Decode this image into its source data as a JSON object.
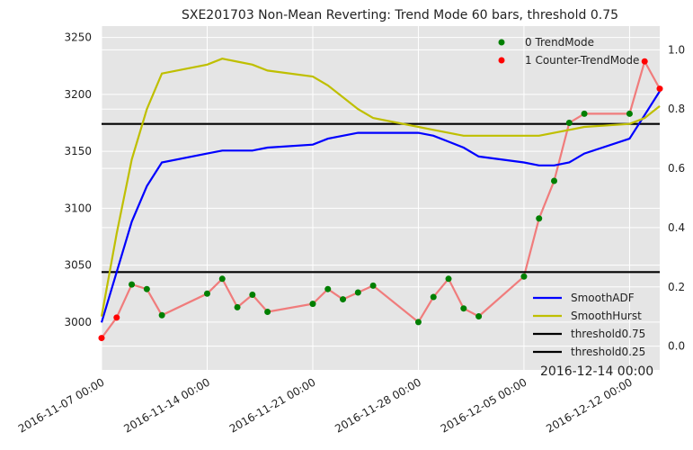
{
  "chart_data": {
    "type": "line",
    "title": "SXE201703 Non-Mean Reverting: Trend Mode 60 bars, threshold 0.75",
    "corner_label": "2016-12-14 00:00",
    "x_dates": [
      "2016-11-07",
      "2016-11-08",
      "2016-11-09",
      "2016-11-10",
      "2016-11-11",
      "2016-11-14",
      "2016-11-15",
      "2016-11-16",
      "2016-11-17",
      "2016-11-18",
      "2016-11-21",
      "2016-11-22",
      "2016-11-23",
      "2016-11-24",
      "2016-11-25",
      "2016-11-28",
      "2016-11-29",
      "2016-11-30",
      "2016-12-01",
      "2016-12-02",
      "2016-12-05",
      "2016-12-06",
      "2016-12-07",
      "2016-12-08",
      "2016-12-09",
      "2016-12-12",
      "2016-12-13",
      "2016-12-14"
    ],
    "x_tick_labels": [
      "2016-11-07 00:00",
      "2016-11-14 00:00",
      "2016-11-21 00:00",
      "2016-11-28 00:00",
      "2016-12-05 00:00",
      "2016-12-12 00:00"
    ],
    "y_left": {
      "range": [
        2958,
        3260
      ],
      "ticks": [
        3000,
        3050,
        3100,
        3150,
        3200,
        3250
      ]
    },
    "y_right": {
      "range": [
        -0.08,
        1.08
      ],
      "ticks": [
        0.0,
        0.2,
        0.4,
        0.6,
        0.8,
        1.0
      ],
      "tick_labels": [
        "0.0",
        "0.2",
        "0.4",
        "0.6",
        "0.8",
        "1.0"
      ]
    },
    "price": {
      "color": "#f07c7c",
      "values": [
        2986,
        3004,
        3033,
        3029,
        3006,
        3025,
        3038,
        3013,
        3024,
        3009,
        3016,
        3029,
        3020,
        3026,
        3032,
        3000,
        3022,
        3038,
        3012,
        3005,
        3040,
        3091,
        3124,
        3175,
        3183,
        3183,
        3229,
        3205
      ]
    },
    "trend_mode": [
      1,
      1,
      0,
      0,
      0,
      0,
      0,
      0,
      0,
      0,
      0,
      0,
      0,
      0,
      0,
      0,
      0,
      0,
      0,
      0,
      0,
      0,
      0,
      0,
      0,
      0,
      1,
      1
    ],
    "series": [
      {
        "name": "SmoothADF",
        "color": "#0000ff",
        "values": [
          0.08,
          0.25,
          0.42,
          0.54,
          0.62,
          0.65,
          0.66,
          0.66,
          0.66,
          0.67,
          0.68,
          0.7,
          0.71,
          0.72,
          0.72,
          0.72,
          0.71,
          0.69,
          0.67,
          0.64,
          0.62,
          0.61,
          0.61,
          0.62,
          0.65,
          0.7,
          0.78,
          0.86
        ]
      },
      {
        "name": "SmoothHurst",
        "color": "#bfbf00",
        "values": [
          0.1,
          0.38,
          0.63,
          0.8,
          0.92,
          0.95,
          0.97,
          0.96,
          0.95,
          0.93,
          0.91,
          0.88,
          0.84,
          0.8,
          0.77,
          0.74,
          0.73,
          0.72,
          0.71,
          0.71,
          0.71,
          0.71,
          0.72,
          0.73,
          0.74,
          0.75,
          0.77,
          0.81
        ]
      },
      {
        "name": "threshold0.75",
        "color": "#000000",
        "value": 0.75
      },
      {
        "name": "threshold0.25",
        "color": "#000000",
        "value": 0.25
      }
    ],
    "scatter_legend": [
      {
        "label": "0 TrendMode",
        "color": "#007f00"
      },
      {
        "label": "1 Counter-TrendMode",
        "color": "#ff0000"
      }
    ],
    "grid": true,
    "background": "#e5e5e5"
  }
}
